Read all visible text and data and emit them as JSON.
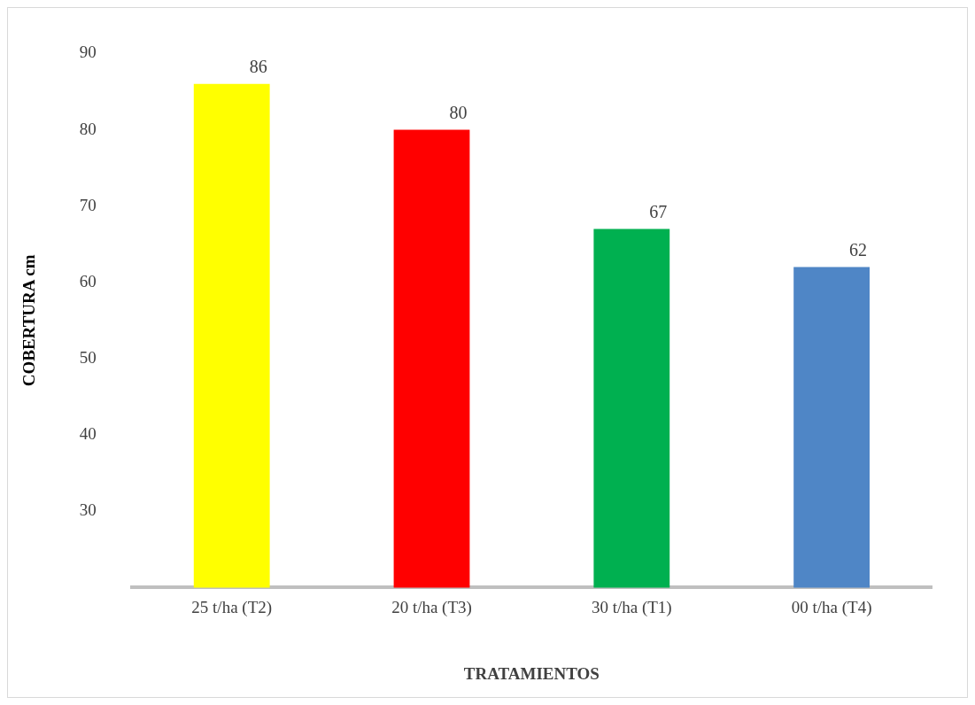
{
  "chart_data": {
    "type": "bar",
    "xlabel": "TRATAMIENTOS",
    "ylabel": "COBERTURA cm",
    "categories": [
      "25 t/ha (T2)",
      "20 t/ha (T3)",
      "30 t/ha (T1)",
      "00 t/ha (T4)"
    ],
    "values": [
      86,
      80,
      67,
      62
    ],
    "colors": [
      "#ffff00",
      "#ff0000",
      "#00b050",
      "#4f86c6"
    ],
    "ylim": [
      20,
      90
    ],
    "yticks": [
      30,
      40,
      50,
      60,
      70,
      80,
      90
    ],
    "grid": false,
    "data_labels": true
  }
}
